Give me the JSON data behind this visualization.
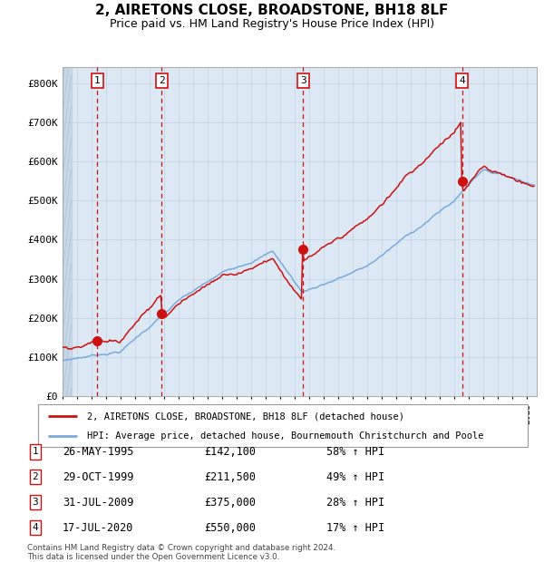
{
  "title": "2, AIRETONS CLOSE, BROADSTONE, BH18 8LF",
  "subtitle": "Price paid vs. HM Land Registry's House Price Index (HPI)",
  "ylabel_ticks": [
    "£0",
    "£100K",
    "£200K",
    "£300K",
    "£400K",
    "£500K",
    "£600K",
    "£700K",
    "£800K"
  ],
  "ytick_vals": [
    0,
    100000,
    200000,
    300000,
    400000,
    500000,
    600000,
    700000,
    800000
  ],
  "ylim": [
    0,
    840000
  ],
  "xlim_start": 1993.0,
  "xlim_end": 2025.7,
  "sales": [
    {
      "num": 1,
      "date_label": "26-MAY-1995",
      "year": 1995.4,
      "price": 142100,
      "pct": "58% ↑ HPI"
    },
    {
      "num": 2,
      "date_label": "29-OCT-1999",
      "year": 1999.83,
      "price": 211500,
      "pct": "49% ↑ HPI"
    },
    {
      "num": 3,
      "date_label": "31-JUL-2009",
      "year": 2009.58,
      "price": 375000,
      "pct": "28% ↑ HPI"
    },
    {
      "num": 4,
      "date_label": "17-JUL-2020",
      "year": 2020.54,
      "price": 550000,
      "pct": "17% ↑ HPI"
    }
  ],
  "hpi_line_color": "#7aaadd",
  "price_line_color": "#cc1111",
  "vline_color": "#cc1111",
  "grid_color": "#c8d8e8",
  "bg_color": "#dce8f4",
  "legend_line1": "2, AIRETONS CLOSE, BROADSTONE, BH18 8LF (detached house)",
  "legend_line2": "HPI: Average price, detached house, Bournemouth Christchurch and Poole",
  "footer": "Contains HM Land Registry data © Crown copyright and database right 2024.\nThis data is licensed under the Open Government Licence v3.0.",
  "table_rows": [
    [
      1,
      "26-MAY-1995",
      "£142,100",
      "58% ↑ HPI"
    ],
    [
      2,
      "29-OCT-1999",
      "£211,500",
      "49% ↑ HPI"
    ],
    [
      3,
      "31-JUL-2009",
      "£375,000",
      "28% ↑ HPI"
    ],
    [
      4,
      "17-JUL-2020",
      "£550,000",
      "17% ↑ HPI"
    ]
  ]
}
